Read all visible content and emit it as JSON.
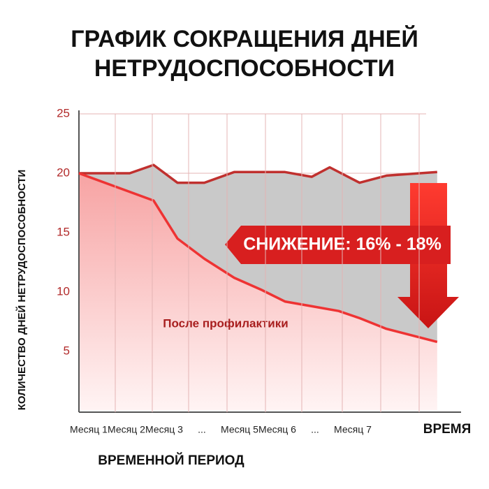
{
  "chart_data": {
    "type": "line",
    "title": [
      "ГРАФИК СОКРАЩЕНИЯ ДНЕЙ",
      "НЕТРУДОСПОСОБНОСТИ"
    ],
    "y_label": "КОЛИЧЕСТВО ДНЕЙ НЕТРУДОСПОСОБНОСТИ",
    "x_label": "ВРЕМЕННОЙ ПЕРИОД",
    "x_axis_end_label": "ВРЕМЯ",
    "categories": [
      "Месяц 1",
      "Месяц 2",
      "Месяц 3",
      "...",
      "Месяц 5",
      "Месяц 6",
      "...",
      "Месяц 7"
    ],
    "ylim": [
      0,
      25
    ],
    "yticks": [
      5,
      10,
      15,
      20,
      25
    ],
    "xlim": [
      0,
      12.8
    ],
    "series": [
      {
        "color": "#c0302e",
        "x": [
          0,
          1.7,
          2.5,
          3.3,
          4.2,
          5.2,
          6.1,
          6.9,
          7.8,
          8.4,
          9.4,
          10.3,
          12
        ],
        "values": [
          20,
          20,
          20.7,
          19.2,
          19.2,
          20.1,
          20.1,
          20.1,
          19.7,
          20.5,
          19.2,
          19.8,
          20.1
        ]
      },
      {
        "name": "После профилактики",
        "color": "#ee3333",
        "x": [
          0,
          2.5,
          3.3,
          4.2,
          5.2,
          6.1,
          6.9,
          7.8,
          8.7,
          9.4,
          10.3,
          12
        ],
        "values": [
          20,
          17.7,
          14.5,
          12.8,
          11.2,
          10.2,
          9.2,
          8.8,
          8.4,
          7.8,
          6.9,
          5.8
        ]
      }
    ],
    "annotation": "СНИЖЕНИЕ: 16% - 18%"
  }
}
